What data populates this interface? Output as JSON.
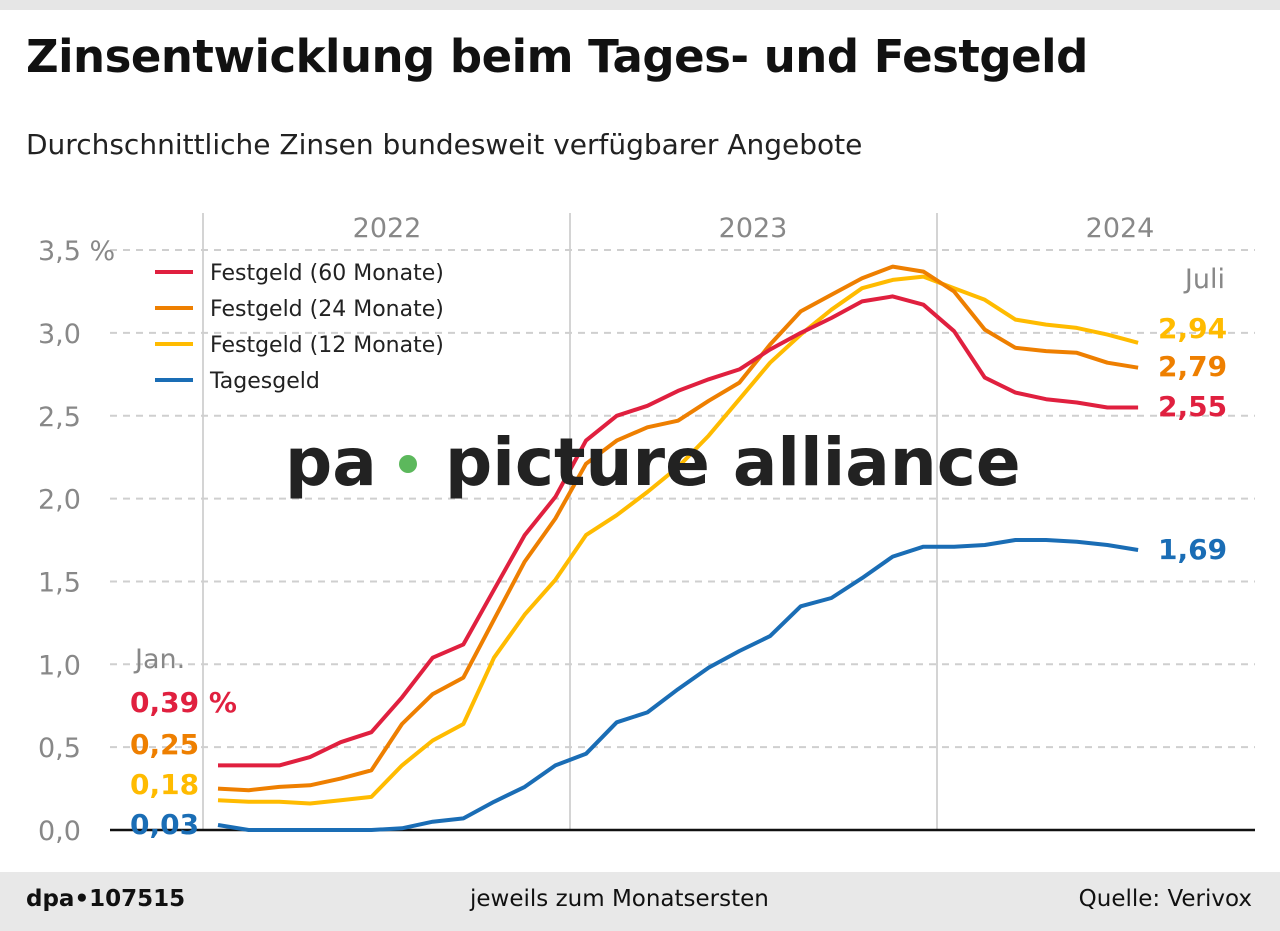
{
  "title": "Zinsentwicklung beim Tages- und Festgeld",
  "subtitle": "Durchschnittliche Zinsen bundesweit verfügbarer Angebote",
  "footer": {
    "id": "dpa•107515",
    "note": "jeweils zum Monatsersten",
    "source": "Quelle: Verivox"
  },
  "watermark": "pa • picture alliance",
  "chart_data": {
    "type": "line",
    "title": "Zinsentwicklung beim Tages- und Festgeld",
    "ylabel": "",
    "xlabel": "",
    "ylim": [
      0,
      3.5
    ],
    "y_ticks": [
      "0,0",
      "0,5",
      "1,0",
      "1,5",
      "2,0",
      "2,5",
      "3,0",
      "3,5 %"
    ],
    "y_tick_values": [
      0,
      0.5,
      1.0,
      1.5,
      2.0,
      2.5,
      3.0,
      3.5
    ],
    "year_labels": [
      "2022",
      "2023",
      "2024"
    ],
    "x_start": "2022-01",
    "x_end": "2024-07",
    "start_label": "Jan.",
    "end_label": "Juli",
    "grid": true,
    "legend_position": "top-left",
    "x": [
      "2022-01",
      "2022-02",
      "2022-03",
      "2022-04",
      "2022-05",
      "2022-06",
      "2022-07",
      "2022-08",
      "2022-09",
      "2022-10",
      "2022-11",
      "2022-12",
      "2023-01",
      "2023-02",
      "2023-03",
      "2023-04",
      "2023-05",
      "2023-06",
      "2023-07",
      "2023-08",
      "2023-09",
      "2023-10",
      "2023-11",
      "2023-12",
      "2024-01",
      "2024-02",
      "2024-03",
      "2024-04",
      "2024-05",
      "2024-06",
      "2024-07"
    ],
    "series": [
      {
        "name": "Festgeld (60 Monate)",
        "color": "#e0203f",
        "start_label": "0,39 %",
        "end_label": "2,55",
        "values": [
          0.39,
          0.39,
          0.39,
          0.44,
          0.53,
          0.59,
          0.8,
          1.04,
          1.12,
          1.45,
          1.78,
          2.01,
          2.35,
          2.5,
          2.56,
          2.65,
          2.72,
          2.78,
          2.9,
          3.0,
          3.09,
          3.19,
          3.22,
          3.17,
          3.01,
          2.73,
          2.64,
          2.6,
          2.58,
          2.55,
          2.55
        ]
      },
      {
        "name": "Festgeld (24 Monate)",
        "color": "#ee7f00",
        "start_label": "0,25",
        "end_label": "2,79",
        "values": [
          0.25,
          0.24,
          0.26,
          0.27,
          0.31,
          0.36,
          0.64,
          0.82,
          0.92,
          1.27,
          1.62,
          1.88,
          2.21,
          2.35,
          2.43,
          2.47,
          2.59,
          2.7,
          2.93,
          3.13,
          3.23,
          3.33,
          3.4,
          3.37,
          3.25,
          3.02,
          2.91,
          2.89,
          2.88,
          2.82,
          2.79
        ]
      },
      {
        "name": "Festgeld (12 Monate)",
        "color": "#ffbb00",
        "start_label": "0,18",
        "end_label": "2,94",
        "values": [
          0.18,
          0.17,
          0.17,
          0.16,
          0.18,
          0.2,
          0.39,
          0.54,
          0.64,
          1.04,
          1.3,
          1.51,
          1.78,
          1.9,
          2.04,
          2.19,
          2.38,
          2.6,
          2.82,
          2.99,
          3.14,
          3.27,
          3.32,
          3.34,
          3.27,
          3.2,
          3.08,
          3.05,
          3.03,
          2.99,
          2.94
        ]
      },
      {
        "name": "Tagesgeld",
        "color": "#1a6db5",
        "start_label": "0,03",
        "end_label": "1,69",
        "values": [
          0.03,
          0.0,
          0.0,
          0.0,
          0.0,
          0.0,
          0.01,
          0.05,
          0.07,
          0.17,
          0.26,
          0.39,
          0.46,
          0.65,
          0.71,
          0.85,
          0.98,
          1.08,
          1.17,
          1.35,
          1.4,
          1.52,
          1.65,
          1.71,
          1.71,
          1.72,
          1.75,
          1.75,
          1.74,
          1.72,
          1.69
        ]
      }
    ]
  }
}
